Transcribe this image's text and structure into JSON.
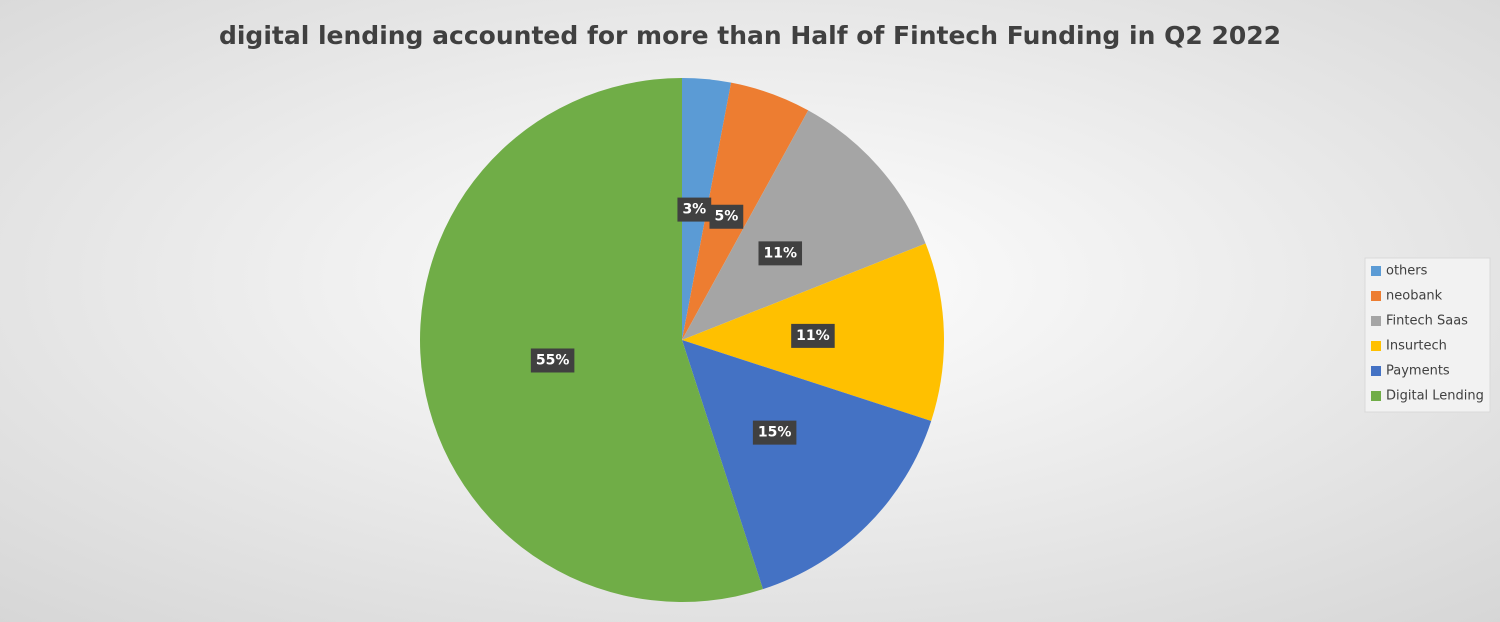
{
  "chart_data": {
    "type": "pie",
    "title": "digital lending accounted for more than Half of Fintech Funding in Q2 2022",
    "categories": [
      "others",
      "neobank",
      "Fintech Saas",
      "Insurtech",
      "Payments",
      "Digital Lending"
    ],
    "values": [
      3,
      5,
      11,
      11,
      15,
      55
    ],
    "value_labels": [
      "3%",
      "5%",
      "11%",
      "11%",
      "15%",
      "55%"
    ],
    "colors": [
      "#5b9bd5",
      "#ed7d31",
      "#a5a5a5",
      "#ffc000",
      "#4472c4",
      "#70ad47"
    ],
    "legend": "right"
  }
}
